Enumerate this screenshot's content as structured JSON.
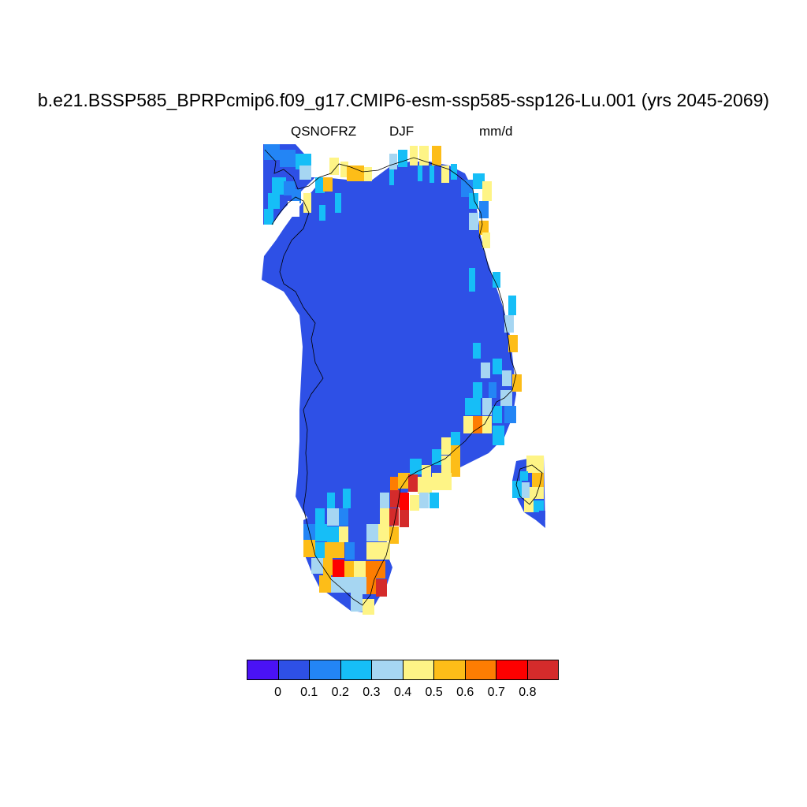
{
  "title": "b.e21.BSSP585_BPRPcmip6.f09_g17.CMIP6-esm-ssp585-ssp126-Lu.001 (yrs 2045-2069)",
  "left_label": "QSNOFRZ",
  "center_label": "DJF",
  "right_label": "mm/d",
  "colorbar": {
    "colors": [
      "#4a12f5",
      "#2e50e6",
      "#2385f5",
      "#16bef7",
      "#a6d6f2",
      "#fef486",
      "#fdbd18",
      "#fd7d02",
      "#fe0000",
      "#d42b2b"
    ],
    "labels": [
      "0",
      "0.1",
      "0.2",
      "0.3",
      "0.4",
      "0.5",
      "0.6",
      "0.7",
      "0.8"
    ]
  },
  "palette": {
    "background": "#2e50e6",
    "coast": "#000000"
  }
}
